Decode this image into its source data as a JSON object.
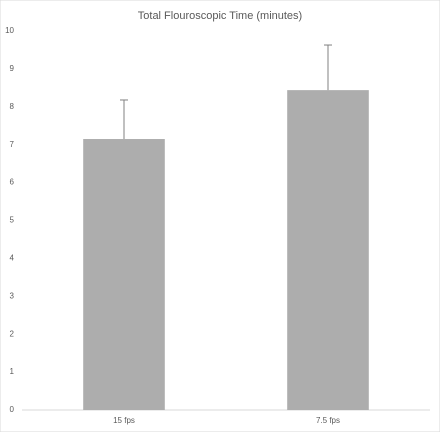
{
  "chart_data": {
    "type": "bar",
    "title": "Total Flouroscopic Time (minutes)",
    "categories": [
      "15 fps",
      "7.5 fps"
    ],
    "values": [
      7.15,
      8.44
    ],
    "errors": [
      1.03,
      1.19
    ],
    "color": "#adadad",
    "error_color": "#808080",
    "ylim": [
      0,
      10
    ],
    "yticks": [
      0,
      1,
      2,
      3,
      4,
      5,
      6,
      7,
      8,
      9,
      10
    ],
    "grid": false
  }
}
